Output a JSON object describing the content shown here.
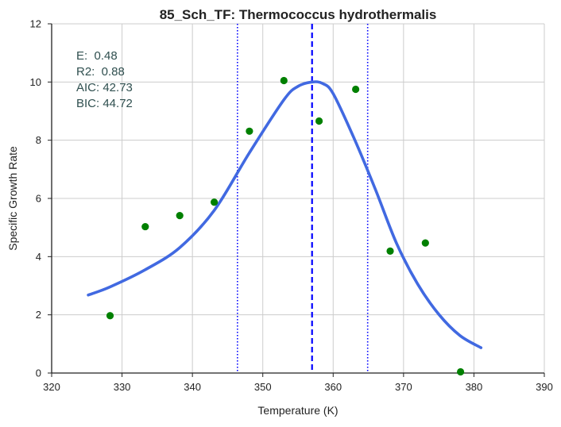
{
  "chart_data": {
    "type": "scatter",
    "title": "85_Sch_TF: Thermococcus hydrothermalis",
    "xlabel": "Temperature (K)",
    "ylabel": "Specific Growth Rate",
    "xlim": [
      320,
      390
    ],
    "ylim": [
      0,
      12
    ],
    "x_ticks": [
      320,
      330,
      340,
      350,
      360,
      370,
      380,
      390
    ],
    "y_ticks": [
      0,
      2,
      4,
      6,
      8,
      10,
      12
    ],
    "grid": true,
    "annotations": [
      "E:  0.48",
      "R2:  0.88",
      "AIC: 42.73",
      "BIC: 44.72"
    ],
    "series": [
      {
        "kind": "points",
        "color": "#008000",
        "x": [
          328.3,
          333.3,
          338.2,
          343.1,
          348.1,
          353.0,
          358.0,
          363.2,
          368.1,
          373.1,
          378.1
        ],
        "y": [
          1.97,
          5.03,
          5.41,
          5.87,
          8.31,
          10.05,
          8.66,
          9.75,
          4.19,
          4.47,
          0.04
        ]
      },
      {
        "kind": "fit-curve",
        "color": "#4169e1",
        "x": [
          325.2,
          328.3,
          333.3,
          338.2,
          343.1,
          348.1,
          353.0,
          355.0,
          357.0,
          358.5,
          360.0,
          363.0,
          366.0,
          369.0,
          372.0,
          375.0,
          378.0,
          381.0
        ],
        "y": [
          2.68,
          2.96,
          3.55,
          4.31,
          5.59,
          7.57,
          9.39,
          9.85,
          10.0,
          9.95,
          9.6,
          8.05,
          6.31,
          4.46,
          3.06,
          2.02,
          1.29,
          0.87
        ]
      }
    ],
    "reference_lines": [
      {
        "x": 357.0,
        "style": "dashed",
        "color": "#0000ff"
      },
      {
        "x": 346.4,
        "style": "dotted",
        "color": "#0000ff"
      },
      {
        "x": 364.9,
        "style": "dotted",
        "color": "#0000ff"
      }
    ]
  }
}
